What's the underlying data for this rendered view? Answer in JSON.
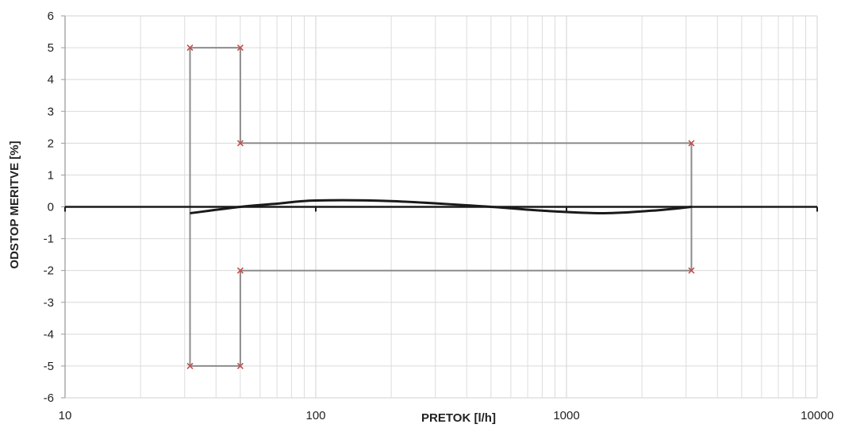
{
  "chart_data": {
    "type": "line",
    "title": "",
    "xlabel": "PRETOK  [l/h]",
    "ylabel": "ODSTOP MERITVE [%]",
    "xscale": "log",
    "xlim": [
      10,
      10000
    ],
    "ylim": [
      -6,
      6
    ],
    "x_ticks": [
      "10",
      "100",
      "1000",
      "10000"
    ],
    "y_ticks": [
      "6",
      "5",
      "4",
      "3",
      "2",
      "1",
      "0",
      "-1",
      "-2",
      "-3",
      "-4",
      "-5",
      "-6"
    ],
    "grid": true,
    "legend": "none",
    "colors": {
      "grid": "#d9d9d9",
      "limits": "#8c8c8c",
      "markers": "#c0504d",
      "curve": "#1a1a1a",
      "zero_axis": "#1a1a1a"
    },
    "series": [
      {
        "role": "upper-limit",
        "points": [
          [
            31.5,
            0
          ],
          [
            31.5,
            5
          ],
          [
            50,
            5
          ],
          [
            50,
            2
          ],
          [
            3150,
            2
          ],
          [
            3150,
            0
          ]
        ],
        "markers": [
          [
            31.5,
            5
          ],
          [
            50,
            5
          ],
          [
            50,
            2
          ],
          [
            3150,
            2
          ]
        ]
      },
      {
        "role": "lower-limit",
        "points": [
          [
            31.5,
            0
          ],
          [
            31.5,
            -5
          ],
          [
            50,
            -5
          ],
          [
            50,
            -2
          ],
          [
            3150,
            -2
          ],
          [
            3150,
            0
          ]
        ],
        "markers": [
          [
            31.5,
            -5
          ],
          [
            50,
            -5
          ],
          [
            50,
            -2
          ],
          [
            3150,
            -2
          ]
        ]
      },
      {
        "role": "error-curve",
        "points": [
          [
            31.5,
            -0.2
          ],
          [
            50,
            0.0
          ],
          [
            70,
            0.1
          ],
          [
            100,
            0.2
          ],
          [
            200,
            0.18
          ],
          [
            500,
            0.0
          ],
          [
            800,
            -0.12
          ],
          [
            1400,
            -0.2
          ],
          [
            2200,
            -0.12
          ],
          [
            3150,
            0.0
          ]
        ]
      }
    ]
  }
}
